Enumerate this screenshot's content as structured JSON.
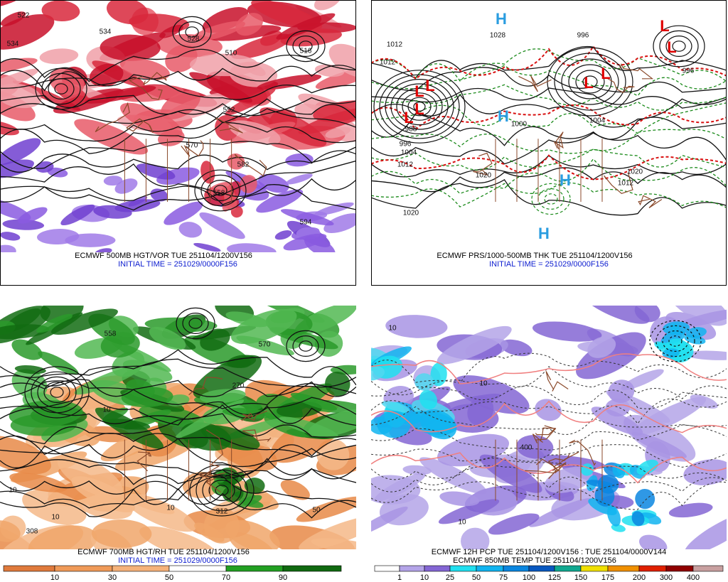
{
  "panels": [
    {
      "caption": "ECMWF 500MB HGT/VOR TUE 251104/1200V156",
      "initial": "INITIAL TIME = 251029/0000F156",
      "contour_labels": [
        "534",
        "522",
        "534",
        "528",
        "510",
        "516",
        "552",
        "570",
        "582",
        "558",
        "594"
      ]
    },
    {
      "caption": "ECMWF PRS/1000-500MB THK TUE 251104/1200V156",
      "initial": "INITIAL TIME = 251029/0000F156",
      "contour_labels": [
        "1012",
        "1012",
        "1028",
        "996",
        "988",
        "996",
        "1004",
        "1012",
        "1020",
        "1020",
        "1000",
        "1004",
        "1020",
        "1012",
        "996"
      ],
      "symbols": [
        "H",
        "H",
        "H",
        "H",
        "L",
        "L",
        "L",
        "L",
        "L",
        "L",
        "L",
        "L"
      ],
      "symbol_colors": {
        "H": "#2a9de0",
        "L": "#e00000"
      }
    },
    {
      "caption": "ECMWF 700MB HGT/RH TUE 251104/1200V156",
      "initial": "INITIAL TIME = 251029/0000F156",
      "contour_labels": [
        "558",
        "570",
        "270",
        "10",
        "312",
        "10",
        "308",
        "10",
        "50",
        "10"
      ]
    },
    {
      "caption": "ECMWF 12H PCP TUE 251104/1200V156 : TUE 251104/0000V144",
      "initial": "ECMWF 850MB TEMP TUE 251104/1200V156",
      "contour_labels": [
        "10",
        "10",
        "400",
        "10"
      ]
    }
  ],
  "colorbars": [
    {
      "ticks": [
        10,
        30,
        50,
        70,
        90
      ],
      "colors": [
        "#e07a3c",
        "#f09a58",
        "#f5b27a",
        "#ffffff",
        "#22a022",
        "#106a10"
      ]
    },
    {
      "ticks": [
        1,
        10,
        25,
        50,
        75,
        100,
        125,
        150,
        175,
        200,
        300,
        400
      ],
      "colors": [
        "#ffffff",
        "#b4a4e8",
        "#8466d4",
        "#20e0f0",
        "#10b4f0",
        "#0a86e0",
        "#0858c0",
        "#10a890",
        "#f0e000",
        "#f09000",
        "#e02000",
        "#900000",
        "#c8a0a0"
      ]
    }
  ]
}
